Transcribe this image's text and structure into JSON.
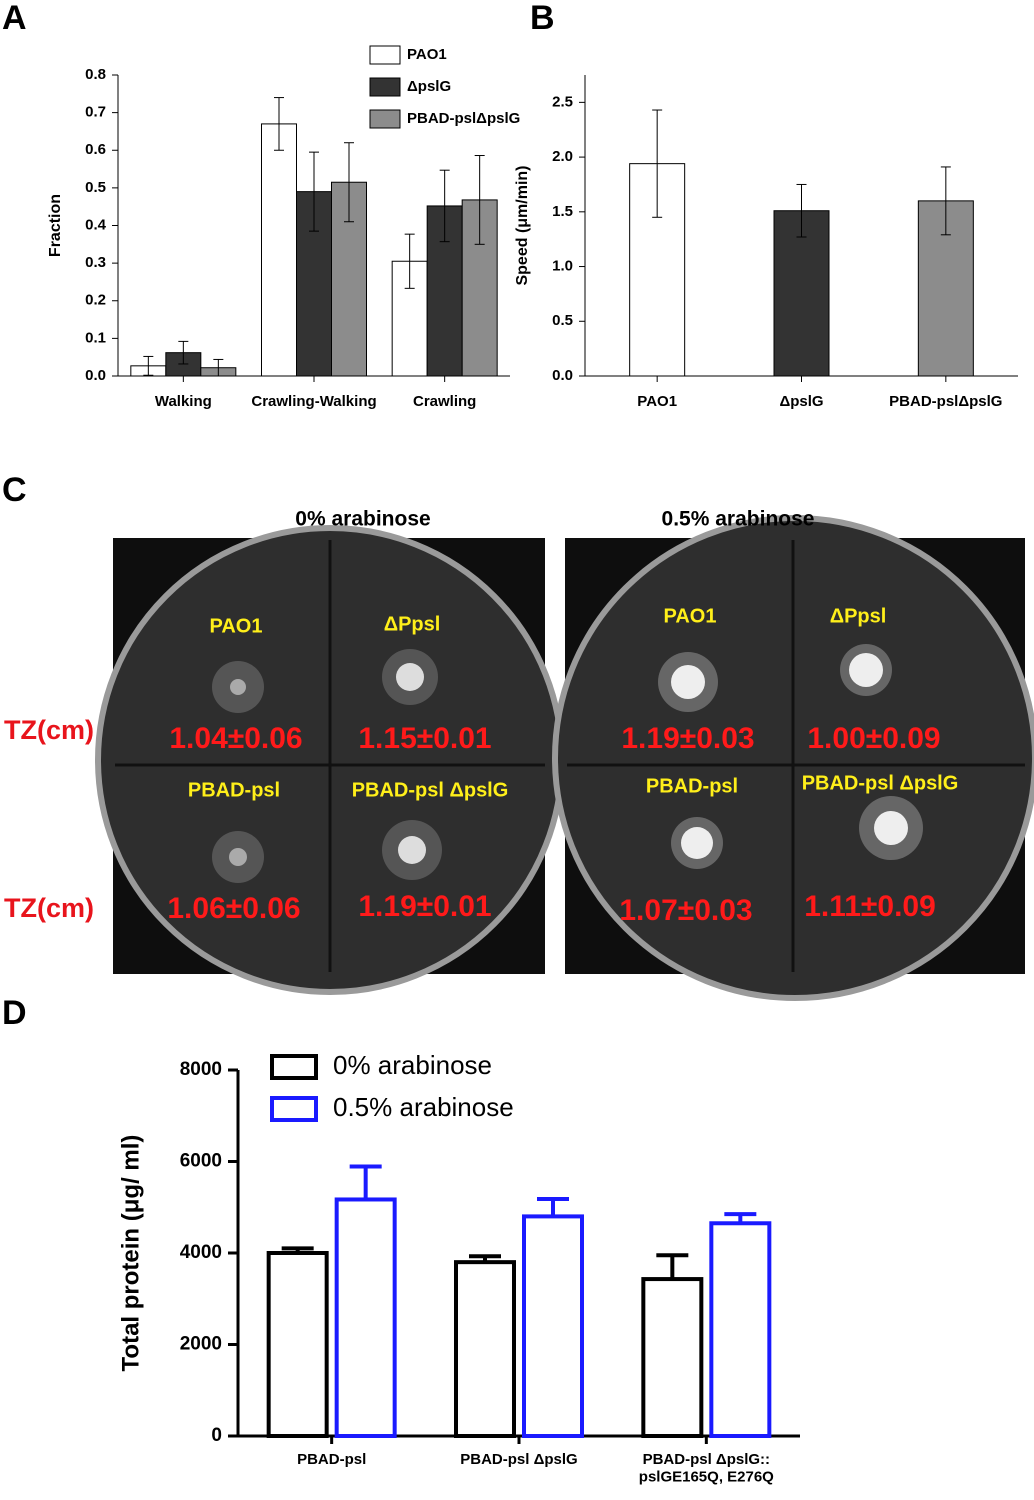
{
  "panels": [
    "A",
    "B",
    "C",
    "D"
  ],
  "chart_data": [
    {
      "type": "bar",
      "ylabel": "Fraction",
      "categories": [
        "Walking",
        "Crawling-Walking",
        "Crawling"
      ],
      "series": [
        {
          "name": "PAO1",
          "color": "#ffffff",
          "values": [
            0.027,
            0.67,
            0.305
          ],
          "errors": [
            0.025,
            0.07,
            0.072
          ]
        },
        {
          "name": "ΔpslG",
          "color": "#333333",
          "values": [
            0.062,
            0.49,
            0.452
          ],
          "errors": [
            0.03,
            0.105,
            0.095
          ]
        },
        {
          "name": "PBAD-pslΔpslG",
          "color": "#8c8c8c",
          "values": [
            0.022,
            0.515,
            0.468
          ],
          "errors": [
            0.022,
            0.105,
            0.118
          ]
        }
      ],
      "ylim": [
        0,
        0.8
      ],
      "yticks": [
        {
          "value": 0,
          "label": "0.0"
        },
        0.1,
        0.2,
        0.3,
        0.4,
        0.5,
        0.6,
        0.7,
        0.8
      ]
    },
    {
      "type": "bar",
      "ylabel": "Speed (μm/min)",
      "categories": [
        "PAO1",
        "ΔpslG",
        "PBAD-pslΔpslG"
      ],
      "values": [
        1.94,
        1.51,
        1.6
      ],
      "errors": [
        0.49,
        0.24,
        0.31
      ],
      "colors": [
        "#ffffff",
        "#333333",
        "#8c8c8c"
      ],
      "ylim": [
        0,
        2.75
      ],
      "yticks": [
        {
          "value": 0,
          "label": "0.0"
        },
        0.5,
        {
          "value": 1,
          "label": "1.0"
        },
        1.5,
        {
          "value": 2,
          "label": "2.0"
        },
        2.5
      ]
    },
    {
      "type": "outline_bar",
      "ylabel": "Total protein (μg/ ml)",
      "categories": [
        "PBAD-psl",
        "PBAD-psl ΔpslG",
        "PBAD-psl ΔpslG::\npslGE165Q, E276Q"
      ],
      "series": [
        {
          "name": "0% arabinose",
          "color": "#000000",
          "values": [
            4000,
            3800,
            3430
          ],
          "errors": [
            100,
            130,
            520
          ]
        },
        {
          "name": "0.5% arabinose",
          "color": "#1a1aff",
          "values": [
            5170,
            4800,
            4650
          ],
          "errors": [
            720,
            380,
            200
          ]
        }
      ],
      "ylim": [
        0,
        8000
      ],
      "yticks": [
        0,
        2000,
        4000,
        6000,
        8000
      ]
    }
  ],
  "plates": {
    "row_labels": [
      "TZ(cm)",
      "TZ(cm)"
    ],
    "dishes": [
      {
        "title": "0% arabinose",
        "strains": [
          {
            "label": "PAO1",
            "tz": "1.04±0.06"
          },
          {
            "label": "ΔPpsl",
            "tz": "1.15±0.01"
          },
          {
            "label": "PBAD-psl",
            "tz": "1.06±0.06"
          },
          {
            "label": "PBAD-psl ΔpslG",
            "tz": "1.19±0.01"
          }
        ]
      },
      {
        "title": "0.5% arabinose",
        "strains": [
          {
            "label": "PAO1",
            "tz": "1.19±0.03"
          },
          {
            "label": "ΔPpsl",
            "tz": "1.00±0.09"
          },
          {
            "label": "PBAD-psl",
            "tz": "1.07±0.03"
          },
          {
            "label": "PBAD-psl ΔpslG",
            "tz": "1.11±0.09"
          }
        ]
      }
    ]
  }
}
